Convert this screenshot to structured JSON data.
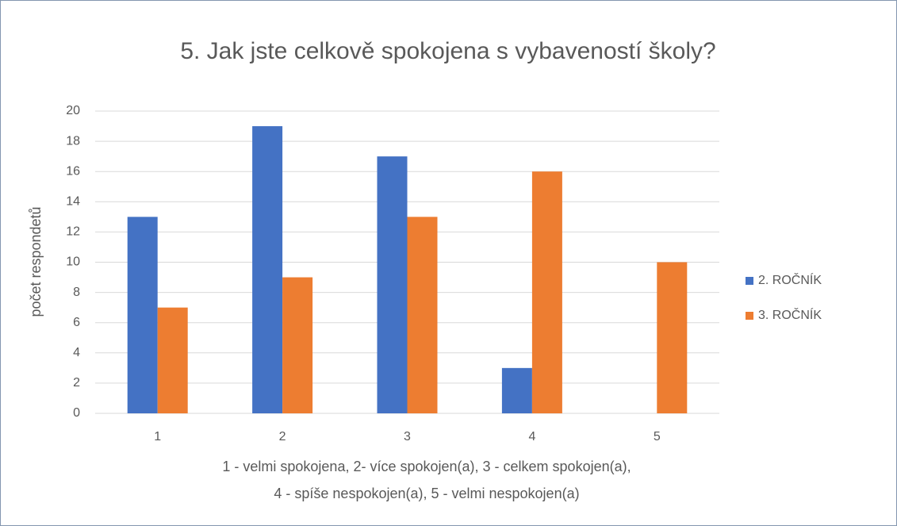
{
  "chart_data": {
    "type": "bar",
    "title": "5. Jak jste celkově spokojena s vybaveností školy?",
    "y_label": "počet respondetů",
    "x_label": [
      "1 - velmi spokojena, 2- více spokojen(a), 3 - celkem spokojen(a),",
      "4 - spíše nespokojen(a),  5 -  velmi nespokojen(a)"
    ],
    "categories": [
      "1",
      "2",
      "3",
      "4",
      "5"
    ],
    "series": [
      {
        "name": "2. ROČNÍK",
        "color": "#4472c4",
        "values": [
          13,
          19,
          17,
          3,
          0
        ]
      },
      {
        "name": "3. ROČNÍK",
        "color": "#ed7d31",
        "values": [
          7,
          9,
          13,
          16,
          10
        ]
      }
    ],
    "ylim": [
      0,
      20
    ],
    "yticks": [
      0,
      2,
      4,
      6,
      8,
      10,
      12,
      14,
      16,
      18,
      20
    ],
    "grid": true,
    "legend": "right"
  }
}
